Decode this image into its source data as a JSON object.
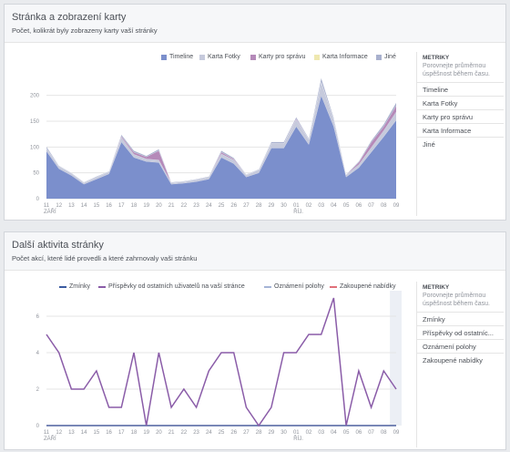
{
  "panel1": {
    "title": "Stránka a zobrazení karty",
    "subtitle": "Počet, kolikrát byly zobrazeny karty vaší stránky",
    "sidebar": {
      "title": "METRIKY",
      "subtitle_line1": "Porovnejte průměrnou",
      "subtitle_line2": "úspěšnost během času.",
      "items": [
        "Timeline",
        "Karta Fotky",
        "Karty pro správu",
        "Karta Informace",
        "Jiné"
      ]
    }
  },
  "panel2": {
    "title": "Další aktivita stránky",
    "subtitle": "Počet akcí, které lidé provedli a které zahrnovaly vaši stránku",
    "sidebar": {
      "title": "METRIKY",
      "subtitle_line1": "Porovnejte průměrnou",
      "subtitle_line2": "úspěšnost během času.",
      "items": [
        "Zmínky",
        "Příspěvky od ostatníc...",
        "Oznámení polohy",
        "Zakoupené nabídky"
      ]
    }
  },
  "colors": {
    "timeline": "#7b8fcc",
    "fotky": "#c6cadc",
    "sprava": "#b58ab9",
    "informace": "#efe8b0",
    "jine": "#a9b1ce",
    "zminky": "#3b5ba0",
    "prispevky": "#8a5ca8",
    "poloha": "#a5b4d6",
    "nabidky": "#e0707a"
  },
  "chart_data": [
    {
      "type": "area",
      "categories": [
        "11",
        "12",
        "13",
        "14",
        "15",
        "16",
        "17",
        "18",
        "19",
        "20",
        "21",
        "22",
        "23",
        "24",
        "25",
        "26",
        "27",
        "28",
        "29",
        "30",
        "01",
        "02",
        "03",
        "04",
        "05",
        "06",
        "07",
        "08",
        "09"
      ],
      "month_labels": [
        {
          "at": "11",
          "label": "ZÁŘÍ"
        },
        {
          "at": "01",
          "label": "ŘÍJ."
        }
      ],
      "ylim": [
        0,
        240
      ],
      "yticks": [
        0,
        50,
        100,
        150,
        200
      ],
      "grid": true,
      "legend_position": "top-right",
      "series": [
        {
          "name": "Timeline",
          "values": [
            92,
            58,
            45,
            28,
            38,
            48,
            110,
            80,
            72,
            70,
            28,
            30,
            33,
            38,
            80,
            68,
            42,
            50,
            98,
            98,
            140,
            105,
            200,
            140,
            42,
            60,
            90,
            120,
            152
          ]
        },
        {
          "name": "Karta Fotky",
          "values": [
            6,
            5,
            4,
            3,
            4,
            4,
            9,
            6,
            5,
            5,
            3,
            3,
            4,
            4,
            7,
            7,
            4,
            6,
            9,
            9,
            13,
            10,
            26,
            14,
            4,
            6,
            9,
            12,
            16
          ]
        },
        {
          "name": "Karty pro správu",
          "values": [
            0,
            0,
            0,
            0,
            0,
            0,
            2,
            4,
            4,
            18,
            0,
            0,
            0,
            0,
            3,
            2,
            0,
            0,
            0,
            0,
            2,
            0,
            0,
            0,
            0,
            4,
            10,
            8,
            12
          ]
        },
        {
          "name": "Karta Informace",
          "values": [
            0,
            0,
            0,
            0,
            0,
            0,
            0,
            0,
            0,
            0,
            0,
            0,
            0,
            0,
            0,
            0,
            0,
            0,
            0,
            0,
            0,
            0,
            0,
            0,
            0,
            0,
            0,
            0,
            0
          ]
        },
        {
          "name": "Jiné",
          "values": [
            3,
            1,
            1,
            1,
            1,
            1,
            3,
            3,
            2,
            3,
            1,
            1,
            1,
            1,
            3,
            2,
            1,
            1,
            3,
            3,
            3,
            2,
            8,
            3,
            1,
            2,
            3,
            4,
            6
          ]
        }
      ]
    },
    {
      "type": "line",
      "categories": [
        "11",
        "12",
        "13",
        "14",
        "15",
        "16",
        "17",
        "18",
        "19",
        "20",
        "21",
        "22",
        "23",
        "24",
        "25",
        "26",
        "27",
        "28",
        "29",
        "30",
        "01",
        "02",
        "03",
        "04",
        "05",
        "06",
        "07",
        "08",
        "09"
      ],
      "month_labels": [
        {
          "at": "11",
          "label": "ZÁŘÍ"
        },
        {
          "at": "01",
          "label": "ŘÍJ."
        }
      ],
      "ylim": [
        0,
        8
      ],
      "yticks": [
        0,
        2,
        4,
        6
      ],
      "grid": true,
      "legend_position": "top-right",
      "series": [
        {
          "name": "Zmínky",
          "values": [
            0,
            0,
            0,
            0,
            0,
            0,
            0,
            0,
            0,
            0,
            0,
            0,
            0,
            0,
            0,
            0,
            0,
            0,
            0,
            0,
            0,
            0,
            0,
            0,
            0,
            0,
            0,
            0,
            0
          ]
        },
        {
          "name": "Příspěvky od ostatních uživatelů na vaší stránce",
          "values": [
            5,
            4,
            2,
            2,
            3,
            1,
            1,
            4,
            0,
            4,
            1,
            2,
            1,
            3,
            4,
            4,
            1,
            0,
            1,
            4,
            4,
            5,
            5,
            7,
            0,
            3,
            1,
            3,
            2
          ]
        },
        {
          "name": "Oznámení polohy",
          "values": [
            0,
            0,
            0,
            0,
            0,
            0,
            0,
            0,
            0,
            0,
            0,
            0,
            0,
            0,
            0,
            0,
            0,
            0,
            0,
            0,
            0,
            0,
            0,
            0,
            0,
            0,
            0,
            0,
            0
          ]
        },
        {
          "name": "Zakoupené nabídky",
          "values": [
            0,
            0,
            0,
            0,
            0,
            0,
            0,
            0,
            0,
            0,
            0,
            0,
            0,
            0,
            0,
            0,
            0,
            0,
            0,
            0,
            0,
            0,
            0,
            0,
            0,
            0,
            0,
            0,
            0
          ]
        }
      ]
    }
  ]
}
